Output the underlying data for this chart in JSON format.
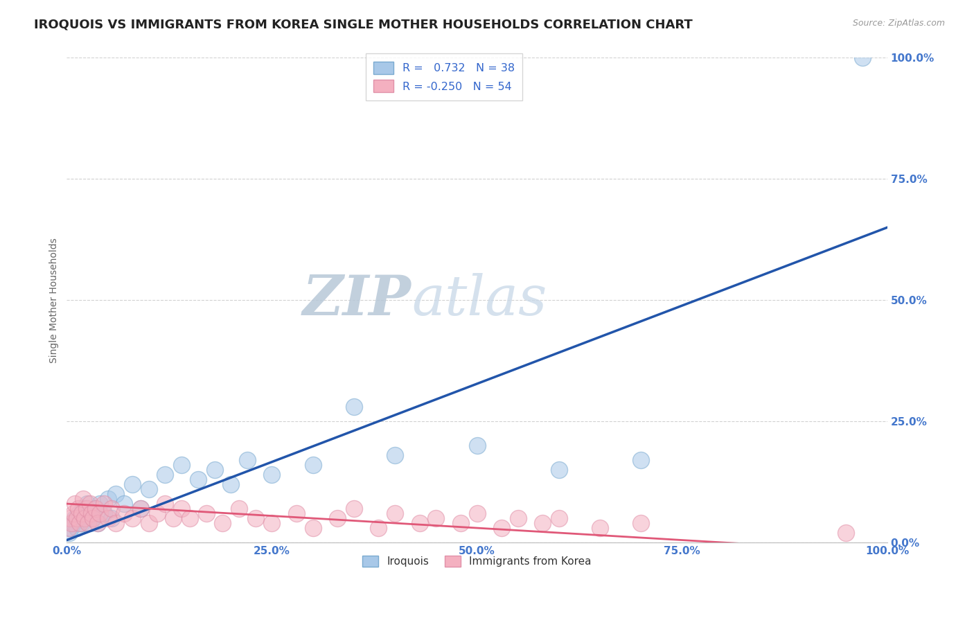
{
  "title": "IROQUOIS VS IMMIGRANTS FROM KOREA SINGLE MOTHER HOUSEHOLDS CORRELATION CHART",
  "source": "Source: ZipAtlas.com",
  "ylabel": "Single Mother Households",
  "r_iroquois": 0.732,
  "n_iroquois": 38,
  "r_korea": -0.25,
  "n_korea": 54,
  "color_iroquois_fill": "#A8C8E8",
  "color_iroquois_edge": "#7AAAD0",
  "color_korea_fill": "#F4B0C0",
  "color_korea_edge": "#E090A8",
  "color_iroquois_line": "#2255AA",
  "color_korea_line": "#E05878",
  "watermark_zip": "#B8CCE0",
  "watermark_atlas": "#C8D8E8",
  "xlim": [
    0,
    100
  ],
  "ylim": [
    0,
    100
  ],
  "grid_color": "#CCCCCC",
  "background_color": "#FFFFFF",
  "title_fontsize": 13,
  "tick_color": "#4477CC",
  "iroquois_line_start_x": 0,
  "iroquois_line_start_y": 0.5,
  "iroquois_line_end_x": 100,
  "iroquois_line_end_y": 65,
  "korea_line_start_x": 0,
  "korea_line_start_y": 8,
  "korea_line_end_x": 100,
  "korea_line_end_y": -2,
  "korea_solid_end_x": 95,
  "iroquois_x": [
    0.3,
    0.5,
    0.8,
    1.0,
    1.2,
    1.5,
    1.8,
    2.0,
    2.2,
    2.5,
    2.8,
    3.0,
    3.2,
    3.5,
    3.8,
    4.0,
    4.5,
    5.0,
    5.5,
    6.0,
    7.0,
    8.0,
    9.0,
    10.0,
    12.0,
    14.0,
    16.0,
    18.0,
    20.0,
    22.0,
    25.0,
    30.0,
    35.0,
    40.0,
    50.0,
    60.0,
    70.0,
    97.0
  ],
  "iroquois_y": [
    2,
    3,
    4,
    5,
    3,
    6,
    4,
    7,
    5,
    8,
    4,
    6,
    5,
    7,
    4,
    8,
    6,
    9,
    5,
    10,
    8,
    12,
    7,
    11,
    14,
    16,
    13,
    15,
    12,
    17,
    14,
    16,
    28,
    18,
    20,
    15,
    17,
    100
  ],
  "korea_x": [
    0.2,
    0.4,
    0.6,
    0.8,
    1.0,
    1.2,
    1.4,
    1.6,
    1.8,
    2.0,
    2.2,
    2.4,
    2.6,
    2.8,
    3.0,
    3.2,
    3.5,
    3.8,
    4.0,
    4.5,
    5.0,
    5.5,
    6.0,
    7.0,
    8.0,
    9.0,
    10.0,
    11.0,
    12.0,
    13.0,
    14.0,
    15.0,
    17.0,
    19.0,
    21.0,
    23.0,
    25.0,
    28.0,
    30.0,
    33.0,
    35.0,
    38.0,
    40.0,
    43.0,
    45.0,
    48.0,
    50.0,
    53.0,
    55.0,
    58.0,
    60.0,
    65.0,
    70.0,
    95.0
  ],
  "korea_y": [
    3,
    5,
    4,
    6,
    8,
    5,
    7,
    4,
    6,
    9,
    5,
    7,
    4,
    8,
    6,
    5,
    7,
    4,
    6,
    8,
    5,
    7,
    4,
    6,
    5,
    7,
    4,
    6,
    8,
    5,
    7,
    5,
    6,
    4,
    7,
    5,
    4,
    6,
    3,
    5,
    7,
    3,
    6,
    4,
    5,
    4,
    6,
    3,
    5,
    4,
    5,
    3,
    4,
    2
  ]
}
